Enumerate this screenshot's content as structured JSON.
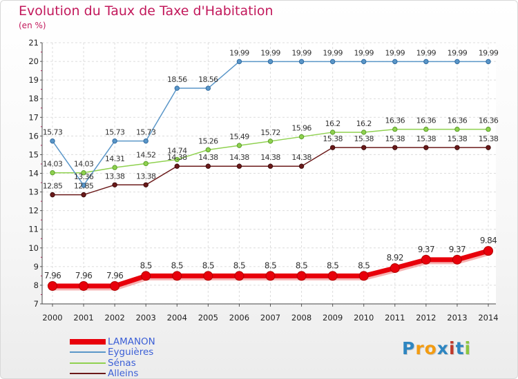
{
  "title": "Evolution du Taux de Taxe d'Habitation",
  "subtitle": "(en %)",
  "logo": {
    "text": "Proxiti",
    "letters": [
      "P",
      "r",
      "o",
      "x",
      "i",
      "t",
      "i"
    ],
    "letter_colors": [
      "#2e86c1",
      "#f39c12",
      "#f39c12",
      "#2e86c1",
      "#c0392b",
      "#2e86c1",
      "#8cc63f"
    ]
  },
  "chart_data": {
    "type": "line",
    "x": [
      "2000",
      "2001",
      "2002",
      "2003",
      "2004",
      "2005",
      "2006",
      "2007",
      "2008",
      "2009",
      "2010",
      "2011",
      "2012",
      "2013",
      "2014"
    ],
    "ylim": [
      7,
      21
    ],
    "yticks": [
      "7",
      "8",
      "9",
      "10",
      "11",
      "12",
      "13",
      "14",
      "15",
      "16",
      "17",
      "18",
      "19",
      "20",
      "21"
    ],
    "grid": true,
    "legend_position": "bottom-left",
    "series": [
      {
        "name": "LAMANON",
        "color": "#e8000b",
        "values": [
          7.96,
          7.96,
          7.96,
          8.5,
          8.5,
          8.5,
          8.5,
          8.5,
          8.5,
          8.5,
          8.5,
          8.92,
          9.37,
          9.37,
          9.84
        ],
        "labels": [
          "7.96",
          "7.96",
          "7.96",
          "8.5",
          "8.5",
          "8.5",
          "8.5",
          "8.5",
          "8.5",
          "8.5",
          "8.5",
          "8.92",
          "9.37",
          "9.37",
          "9.84"
        ]
      },
      {
        "name": "Eyguières",
        "color": "#5a96c8",
        "values": [
          15.73,
          13.36,
          15.73,
          15.73,
          18.56,
          18.56,
          19.99,
          19.99,
          19.99,
          19.99,
          19.99,
          19.99,
          19.99,
          19.99,
          19.99
        ],
        "labels": [
          "15.73",
          "13.36",
          "15.73",
          "15.73",
          "18.56",
          "18.56",
          "19.99",
          "19.99",
          "19.99",
          "19.99",
          "19.99",
          "19.99",
          "19.99",
          "19.99",
          "19.99"
        ]
      },
      {
        "name": "Sénas",
        "color": "#8fd14f",
        "values": [
          14.03,
          14.03,
          14.31,
          14.52,
          14.74,
          15.26,
          15.49,
          15.72,
          15.96,
          16.2,
          16.2,
          16.36,
          16.36,
          16.36,
          16.36
        ],
        "labels": [
          "14.03",
          "14.03",
          "14.31",
          "14.52",
          "14.74",
          "15.26",
          "15.49",
          "15.72",
          "15.96",
          "16.2",
          "16.2",
          "16.36",
          "16.36",
          "16.36",
          "16.36"
        ]
      },
      {
        "name": "Alleins",
        "color": "#6b1a1a",
        "values": [
          12.85,
          12.85,
          13.38,
          13.38,
          14.38,
          14.38,
          14.38,
          14.38,
          14.38,
          15.38,
          15.38,
          15.38,
          15.38,
          15.38,
          15.38
        ],
        "labels": [
          "12.85",
          "12.85",
          "13.38",
          "13.38",
          "14.38",
          "14.38",
          "14.38",
          "14.38",
          "14.38",
          "15.38",
          "15.38",
          "15.38",
          "15.38",
          "15.38",
          "15.38"
        ]
      }
    ]
  }
}
